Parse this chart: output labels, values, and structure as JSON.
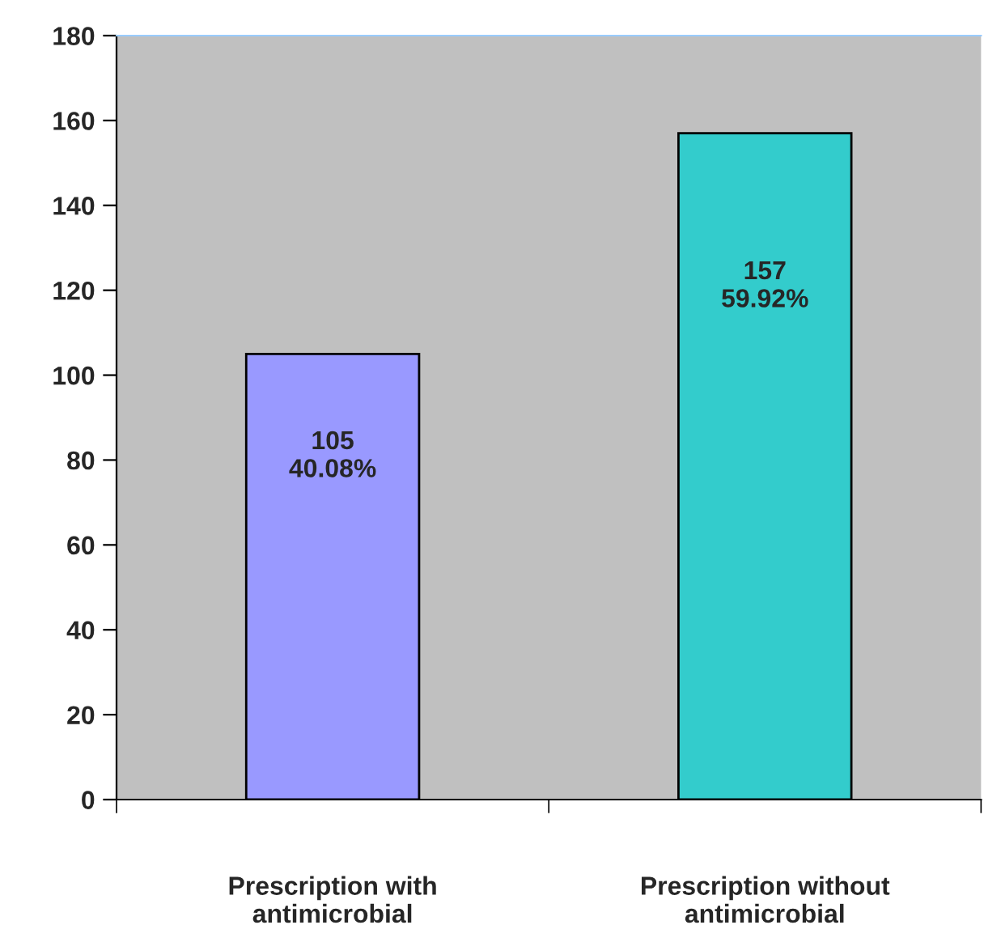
{
  "chart_data": {
    "type": "bar",
    "categories": [
      "Prescription with antimicrobial",
      "Prescription without antimicrobial"
    ],
    "values": [
      105,
      157
    ],
    "colors": [
      "#9999ff",
      "#33cccc"
    ],
    "value_labels": [
      "105\n40.08%",
      "157\n59.92%"
    ],
    "ylim": [
      0,
      180
    ],
    "yticks": [
      0,
      20,
      40,
      60,
      80,
      100,
      120,
      140,
      160,
      180
    ],
    "grid": false,
    "legend": false
  }
}
